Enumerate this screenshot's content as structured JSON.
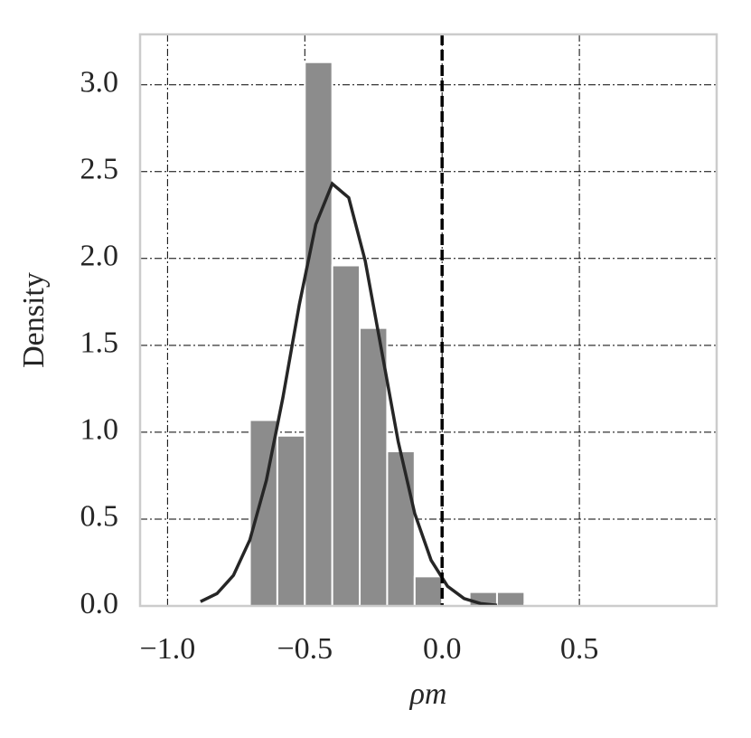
{
  "chart_data": {
    "type": "histogram",
    "xlabel": "ρm",
    "ylabel": "Density",
    "bins": [
      -0.7,
      -0.6,
      -0.5,
      -0.4,
      -0.3,
      -0.2,
      -0.1,
      0.0,
      0.1,
      0.2,
      0.3,
      0.4
    ],
    "counts": [
      1.07,
      0.98,
      3.13,
      1.96,
      1.6,
      0.89,
      0.17,
      0,
      0.08,
      0.08,
      0.01
    ],
    "color": "#8c8c8c",
    "curve": {
      "color": "#262626",
      "x": [
        -0.88,
        -0.82,
        -0.76,
        -0.7,
        -0.64,
        -0.58,
        -0.52,
        -0.46,
        -0.4,
        -0.34,
        -0.28,
        -0.22,
        -0.16,
        -0.1,
        -0.04,
        0.02,
        0.08,
        0.14,
        0.2
      ],
      "values": [
        0.025,
        0.071,
        0.176,
        0.381,
        0.723,
        1.198,
        1.735,
        2.196,
        2.43,
        2.35,
        1.986,
        1.467,
        0.947,
        0.534,
        0.263,
        0.113,
        0.043,
        0.014,
        0.004
      ]
    },
    "vline": 0,
    "xlim": [
      -1.1,
      1.0
    ],
    "ylim": [
      0,
      3.29
    ],
    "xticks": [
      {
        "value": -1.0,
        "label": "−1.0"
      },
      {
        "value": -0.5,
        "label": "−0.5"
      },
      {
        "value": 0.0,
        "label": "0.0"
      },
      {
        "value": 0.5,
        "label": "0.5"
      }
    ],
    "yticks": [
      {
        "value": 0,
        "label": "0.0"
      },
      {
        "value": 0.5,
        "label": "0.5"
      },
      {
        "value": 1.0,
        "label": "1.0"
      },
      {
        "value": 1.5,
        "label": "1.5"
      },
      {
        "value": 2.0,
        "label": "2.0"
      },
      {
        "value": 2.5,
        "label": "2.5"
      },
      {
        "value": 3.0,
        "label": "3.0"
      }
    ],
    "grid": true
  }
}
